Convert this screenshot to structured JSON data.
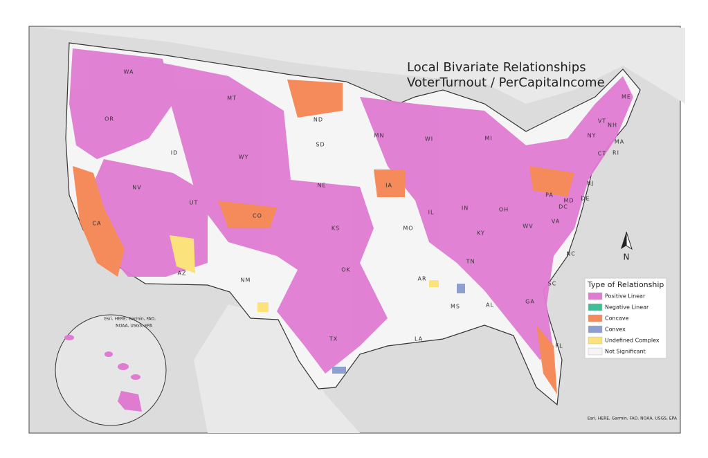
{
  "title": [
    "Local Bivariate Relationships",
    "VoterTurnout / PerCapitaIncome"
  ],
  "legend": {
    "title": "Type of Relationship",
    "items": [
      {
        "label": "Positive Linear",
        "color": "#e07bd2"
      },
      {
        "label": "Negative Linear",
        "color": "#3fbf98"
      },
      {
        "label": "Concave",
        "color": "#f58a5a"
      },
      {
        "label": "Convex",
        "color": "#8d9fcf"
      },
      {
        "label": "Undefined Complex",
        "color": "#fbe27a"
      },
      {
        "label": "Not Significant",
        "color": "#f5f5f5"
      }
    ]
  },
  "state_labels": [
    "WA",
    "MT",
    "ID",
    "OR",
    "ND",
    "MN",
    "SD",
    "WY",
    "NV",
    "UT",
    "CO",
    "NE",
    "IA",
    "WI",
    "MI",
    "IL",
    "IN",
    "OH",
    "PA",
    "NY",
    "VT",
    "NH",
    "ME",
    "MA",
    "CT",
    "RI",
    "NJ",
    "DE",
    "MD",
    "DC",
    "WV",
    "VA",
    "KY",
    "TN",
    "NC",
    "SC",
    "GA",
    "FL",
    "AL",
    "MS",
    "LA",
    "AR",
    "MO",
    "KS",
    "OK",
    "TX",
    "NM",
    "AZ",
    "CA"
  ],
  "north_label": "N",
  "inset_attribution": [
    "Esri, HERE, Garmin, FAO,",
    "NOAA, USGS, EPA"
  ],
  "attribution": "Esri, HERE, Garmin, FAO, NOAA, USGS, EPA"
}
